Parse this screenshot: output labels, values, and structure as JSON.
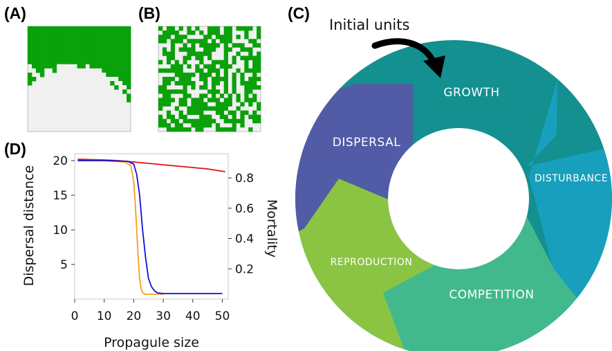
{
  "panels": {
    "a": {
      "label": "(A)"
    },
    "b": {
      "label": "(B)"
    },
    "c": {
      "label": "(C)"
    },
    "d": {
      "label": "(D)"
    }
  },
  "colors": {
    "grid_green": "#0aa10a",
    "grid_empty": "#f0f0f0",
    "curve_mortality": "#e01010",
    "curve_orange": "#f5a012",
    "curve_blue": "#1010d8",
    "seg_growth": "#13908f",
    "seg_disturbance": "#189fbd",
    "seg_competition": "#42b98c",
    "seg_reproduction": "#8bc443",
    "seg_dispersal": "#515ba6"
  },
  "cycle": {
    "annotation": "Initial units",
    "arrow_icon": "curved-arrow-icon",
    "segments": [
      {
        "label": "GROWTH"
      },
      {
        "label": "DISTURBANCE"
      },
      {
        "label": "COMPETITION"
      },
      {
        "label": "REPRODUCTION"
      },
      {
        "label": "DISPERSAL"
      }
    ]
  },
  "chart_data": {
    "type": "line",
    "xlabel": "Propagule size",
    "ylabel_left": "Dispersal distance",
    "ylabel_right": "Mortality",
    "xlim": [
      0,
      52
    ],
    "ylim_left": [
      0,
      21
    ],
    "ylim_right": [
      0,
      0.96
    ],
    "xticks": [
      0,
      10,
      20,
      30,
      40,
      50
    ],
    "yticks_left": [
      5,
      10,
      15,
      20
    ],
    "yticks_right": [
      0.2,
      0.4,
      0.6,
      0.8
    ],
    "xtick_labels": [
      "0",
      "10",
      "20",
      "30",
      "40",
      "50"
    ],
    "ytick_labels_left": [
      "5",
      "10",
      "15",
      "20"
    ],
    "ytick_labels_right": [
      "0.2",
      "0.4",
      "0.6",
      "0.8"
    ],
    "grid": false,
    "series": [
      {
        "axis": "left",
        "color": "#e01010",
        "x": [
          1,
          10,
          15,
          20,
          25,
          30,
          35,
          40,
          45,
          51
        ],
        "y": [
          20.2,
          20.1,
          20.0,
          19.8,
          19.6,
          19.4,
          19.2,
          19.0,
          18.8,
          18.4
        ]
      },
      {
        "axis": "left",
        "color": "#f5a012",
        "x": [
          1,
          10,
          17,
          19,
          20,
          20.5,
          21,
          21.5,
          22,
          22.5,
          23,
          24,
          25,
          28,
          30
        ],
        "y": [
          20.0,
          20.0,
          19.8,
          19.3,
          17.0,
          14.0,
          10.0,
          6.0,
          3.0,
          1.5,
          0.9,
          0.7,
          0.7,
          0.7,
          0.7
        ]
      },
      {
        "axis": "left",
        "color": "#1010d8",
        "x": [
          1,
          10,
          18,
          20,
          21,
          22,
          23,
          24,
          25,
          26,
          27,
          28,
          30,
          35,
          40,
          45,
          50
        ],
        "y": [
          20.0,
          20.0,
          19.9,
          19.5,
          18.0,
          15.0,
          10.0,
          6.0,
          3.0,
          1.8,
          1.2,
          0.9,
          0.8,
          0.8,
          0.8,
          0.8,
          0.8
        ]
      }
    ]
  }
}
